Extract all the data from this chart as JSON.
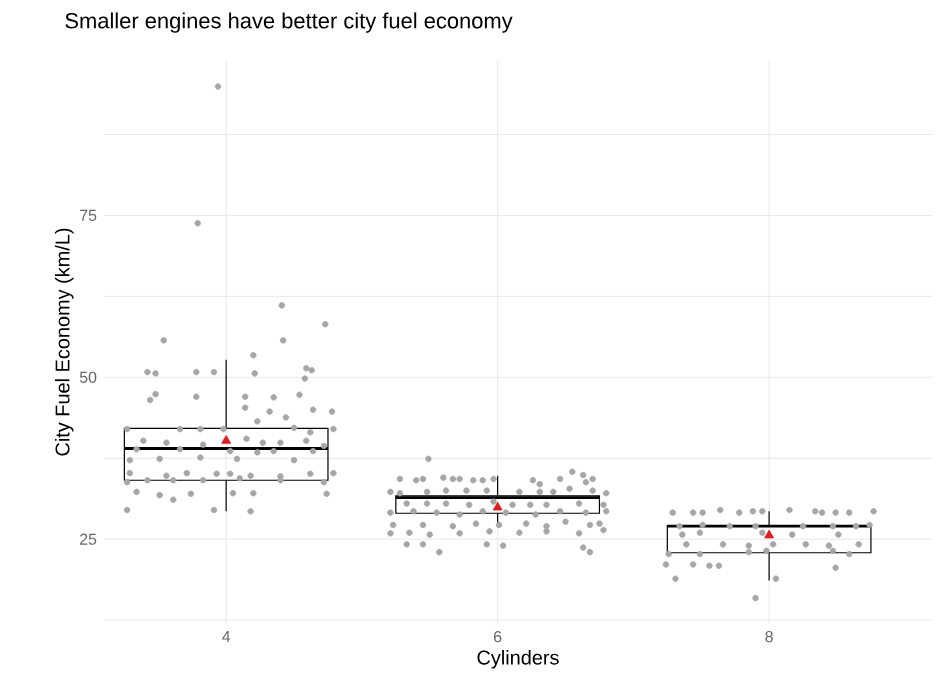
{
  "chart_data": {
    "type": "box",
    "title": "Smaller engines have better city fuel economy",
    "xlabel": "Cylinders",
    "ylabel": "City Fuel Economy (km/L)",
    "xlim": [
      3.1,
      9.2
    ],
    "xticks": [
      4,
      6,
      8
    ],
    "ylim": [
      11.9,
      99
    ],
    "yticks": [
      {
        "value": 12.5,
        "label": null
      },
      25,
      {
        "value": 37.5,
        "label": null
      },
      50,
      {
        "value": 62.5,
        "label": null
      },
      75,
      {
        "value": 87.5,
        "label": null
      }
    ],
    "grid": true,
    "marker": "circle",
    "color": "#000000",
    "x": [
      4,
      6,
      8
    ],
    "boxes": [
      {
        "low": 29.3,
        "q1": 34.1,
        "median": 39.0,
        "q3": 42.1,
        "high": 52.7,
        "mean": 40.2
      },
      {
        "low": 26.9,
        "q1": 29.0,
        "median": 31.4,
        "q3": 31.7,
        "high": 34.8,
        "mean": 29.9
      },
      {
        "low": 18.6,
        "q1": 22.9,
        "median": 27.0,
        "q3": 27.1,
        "high": 29.3,
        "mean": 25.6
      }
    ],
    "series": [
      {
        "type": "scatter",
        "color": "#a6a6a6",
        "x": [
          3.94,
          3.79,
          4.41,
          4.73,
          3.54,
          4.42,
          4.2,
          3.42,
          3.48,
          3.78,
          3.91,
          4.21,
          4.59,
          4.63,
          4.58,
          3.44,
          3.48,
          3.78,
          4.14,
          4.35,
          4.54,
          4.14,
          4.32,
          4.64,
          4.78,
          4.23,
          4.44,
          3.27,
          3.66,
          3.81,
          3.98,
          4.5,
          4.62,
          4.79,
          3.39,
          3.56,
          3.83,
          4.15,
          4.27,
          4.4,
          4.59,
          4.72,
          3.34,
          3.66,
          4.03,
          4.23,
          4.35,
          4.64,
          3.29,
          3.51,
          3.81,
          4.08,
          4.5,
          3.29,
          3.56,
          3.71,
          3.93,
          4.03,
          4.18,
          4.4,
          4.62,
          4.79,
          3.27,
          3.42,
          3.61,
          3.83,
          4.1,
          4.4,
          4.72,
          3.34,
          3.51,
          3.74,
          4.05,
          4.2,
          4.74,
          3.27,
          3.61,
          3.91,
          4.18,
          5.49,
          5.28,
          5.4,
          5.45,
          5.6,
          5.67,
          5.72,
          5.82,
          5.89,
          5.97,
          6.26,
          6.31,
          6.46,
          6.55,
          6.63,
          6.65,
          6.7,
          5.21,
          5.28,
          5.48,
          5.62,
          5.77,
          5.92,
          6.16,
          6.31,
          6.41,
          6.53,
          6.7,
          6.8,
          5.33,
          5.48,
          5.62,
          5.79,
          5.97,
          6.11,
          6.24,
          6.36,
          6.6,
          6.78,
          5.21,
          5.38,
          5.55,
          5.72,
          5.89,
          6.06,
          6.28,
          6.46,
          6.65,
          6.8,
          5.23,
          5.45,
          5.67,
          5.84,
          6.01,
          6.21,
          6.36,
          6.5,
          6.68,
          6.75,
          5.21,
          5.35,
          5.5,
          5.72,
          5.94,
          6.16,
          6.36,
          6.6,
          6.78,
          5.33,
          5.45,
          5.57,
          5.92,
          6.04,
          6.63,
          6.68,
          7.29,
          7.44,
          7.51,
          7.64,
          7.78,
          7.88,
          7.95,
          8.15,
          8.34,
          8.39,
          8.49,
          8.59,
          8.77,
          7.34,
          7.51,
          7.71,
          7.9,
          8.25,
          8.47,
          8.64,
          8.74,
          7.36,
          7.49,
          7.95,
          8.17,
          8.51,
          7.39,
          7.66,
          7.85,
          8.03,
          8.27,
          8.44,
          8.66,
          7.26,
          7.49,
          7.85,
          7.98,
          8.47,
          8.59,
          7.24,
          7.44,
          7.56,
          7.63,
          8.49,
          7.31,
          8.05,
          7.9
        ],
        "values": [
          94.9,
          73.8,
          61.1,
          58.2,
          55.7,
          55.7,
          53.4,
          50.8,
          50.6,
          50.8,
          50.8,
          50.6,
          51.4,
          51.1,
          49.8,
          46.5,
          47.4,
          47.0,
          47.0,
          46.9,
          47.3,
          45.3,
          44.7,
          45.0,
          44.7,
          43.2,
          43.8,
          42.0,
          42.0,
          42.0,
          42.0,
          42.2,
          41.5,
          42.0,
          40.2,
          39.9,
          39.6,
          40.5,
          39.9,
          39.9,
          40.2,
          39.4,
          38.9,
          38.9,
          38.6,
          38.4,
          38.6,
          38.6,
          37.2,
          37.4,
          37.6,
          37.4,
          37.2,
          35.2,
          34.8,
          35.2,
          35.1,
          35.1,
          34.8,
          34.7,
          35.1,
          35.2,
          33.8,
          34.1,
          34.1,
          34.1,
          34.4,
          34.1,
          33.8,
          32.3,
          31.8,
          32.0,
          32.1,
          32.1,
          32.0,
          29.5,
          31.1,
          29.5,
          29.3,
          37.4,
          34.3,
          34.1,
          34.3,
          34.5,
          34.3,
          34.3,
          34.1,
          34.1,
          34.3,
          34.1,
          33.5,
          34.3,
          35.4,
          34.9,
          33.8,
          34.3,
          32.3,
          32.1,
          32.3,
          32.5,
          32.5,
          32.5,
          32.3,
          32.3,
          32.3,
          32.8,
          32.5,
          32.1,
          30.5,
          30.5,
          30.5,
          30.3,
          30.8,
          30.3,
          30.3,
          30.3,
          30.5,
          30.3,
          29.1,
          29.3,
          29.1,
          28.8,
          29.3,
          29.1,
          28.8,
          29.3,
          29.1,
          29.3,
          27.2,
          27.2,
          27.0,
          27.4,
          27.2,
          27.4,
          27.0,
          27.7,
          27.2,
          27.4,
          25.9,
          26.0,
          25.7,
          25.9,
          26.2,
          26.0,
          26.2,
          25.9,
          26.4,
          24.2,
          24.2,
          23.0,
          24.2,
          24.0,
          23.7,
          23.0,
          29.1,
          29.1,
          29.1,
          29.5,
          29.1,
          29.3,
          29.3,
          29.5,
          29.3,
          29.1,
          29.1,
          29.1,
          29.3,
          27.0,
          27.2,
          27.0,
          27.0,
          27.0,
          27.0,
          27.0,
          27.2,
          25.7,
          26.0,
          26.0,
          25.7,
          25.7,
          24.2,
          24.2,
          24.0,
          24.2,
          24.2,
          24.0,
          24.2,
          22.7,
          22.7,
          23.0,
          23.2,
          23.2,
          22.7,
          21.1,
          21.1,
          20.9,
          20.9,
          20.6,
          18.9,
          18.9,
          15.9
        ]
      }
    ]
  }
}
